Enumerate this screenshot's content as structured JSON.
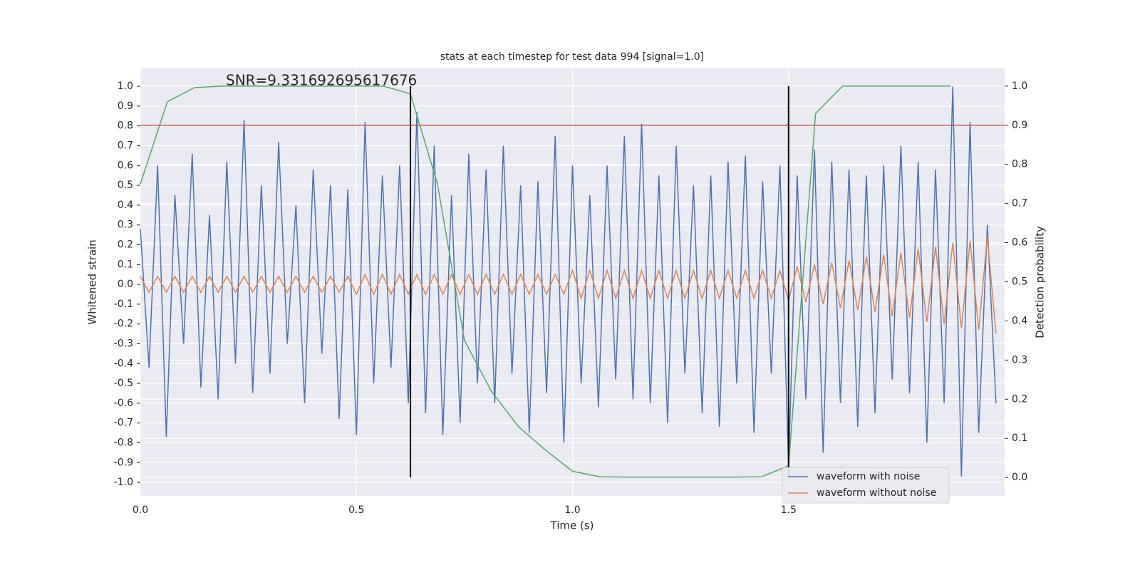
{
  "chart_data": {
    "type": "line",
    "title": "stats at each timestep for test data 994 [signal=1.0]",
    "x_label": "Time (s)",
    "y_label": "Whitened strain",
    "y2_label": "Detection probability",
    "annotation": "SNR=9.331692695617676",
    "xlim": [
      0,
      2.0
    ],
    "ylim": [
      -1.068,
      1.094
    ],
    "y2lim": [
      -0.047,
      1.047
    ],
    "xticks": [
      {
        "value": 0,
        "label": "0.0"
      },
      0.5,
      {
        "value": 1,
        "label": "1.0"
      },
      1.5
    ],
    "yticks": [
      {
        "value": 1,
        "label": "1.0"
      },
      0.9,
      0.8,
      0.7,
      0.6,
      0.5,
      0.4,
      0.3,
      0.2,
      0.1,
      {
        "value": 0,
        "label": "0.0"
      },
      -0.1,
      -0.2,
      -0.3,
      -0.4,
      -0.5,
      -0.6,
      -0.7,
      -0.8,
      -0.9,
      {
        "value": -1,
        "label": "-1.0"
      }
    ],
    "y2ticks": [
      {
        "value": 1,
        "label": "1.0"
      },
      0.9,
      0.8,
      0.7,
      0.6,
      0.5,
      0.4,
      0.3,
      0.2,
      0.1,
      {
        "value": 0,
        "label": "0.0"
      }
    ],
    "grid": true,
    "legend": "lower right",
    "x": [
      0,
      0.02,
      0.04,
      0.06,
      0.08,
      0.1,
      0.12,
      0.14,
      0.16,
      0.18,
      0.2,
      0.22,
      0.24,
      0.26,
      0.28,
      0.3,
      0.32,
      0.34,
      0.36,
      0.38,
      0.4,
      0.42,
      0.44,
      0.46,
      0.48,
      0.5,
      0.52,
      0.54,
      0.56,
      0.58,
      0.6,
      0.62,
      0.64,
      0.66,
      0.68,
      0.7,
      0.72,
      0.74,
      0.76,
      0.78,
      0.8,
      0.82,
      0.84,
      0.86,
      0.88,
      0.9,
      0.92,
      0.94,
      0.96,
      0.98,
      1,
      1.02,
      1.04,
      1.06,
      1.08,
      1.1,
      1.12,
      1.14,
      1.16,
      1.18,
      1.2,
      1.22,
      1.24,
      1.26,
      1.28,
      1.3,
      1.32,
      1.34,
      1.36,
      1.38,
      1.4,
      1.42,
      1.44,
      1.46,
      1.48,
      1.5,
      1.52,
      1.54,
      1.56,
      1.58,
      1.6,
      1.62,
      1.64,
      1.66,
      1.68,
      1.7,
      1.72,
      1.74,
      1.76,
      1.78,
      1.8,
      1.82,
      1.84,
      1.86,
      1.88,
      1.9,
      1.92,
      1.94,
      1.96,
      1.98
    ],
    "series": [
      {
        "name": "waveform with noise",
        "color": "#4c72b0",
        "values": [
          0.28,
          -0.42,
          0.6,
          -0.77,
          0.45,
          -0.3,
          0.66,
          -0.52,
          0.35,
          -0.58,
          0.62,
          -0.4,
          0.83,
          -0.55,
          0.5,
          -0.45,
          0.72,
          -0.3,
          0.4,
          -0.6,
          0.58,
          -0.35,
          0.5,
          -0.68,
          0.48,
          -0.76,
          0.82,
          -0.5,
          0.55,
          -0.42,
          0.6,
          -0.6,
          0.87,
          -0.65,
          0.7,
          -0.76,
          0.45,
          -0.7,
          0.66,
          -0.5,
          0.58,
          -0.6,
          0.7,
          -0.45,
          0.5,
          -0.75,
          0.52,
          -0.55,
          0.75,
          -0.8,
          0.6,
          -0.5,
          0.45,
          -0.62,
          0.6,
          -0.48,
          0.75,
          -0.58,
          0.81,
          -0.6,
          0.55,
          -0.7,
          0.7,
          -0.45,
          0.5,
          -0.65,
          0.55,
          -0.72,
          0.62,
          -0.5,
          0.65,
          -0.75,
          0.52,
          -0.45,
          0.6,
          -0.93,
          0.55,
          -0.58,
          0.68,
          -0.85,
          0.62,
          -0.6,
          0.58,
          -0.72,
          0.55,
          -0.65,
          0.6,
          -0.48,
          0.7,
          -0.55,
          0.62,
          -0.8,
          0.58,
          -0.6,
          1.0,
          -0.97,
          0.82,
          -0.75,
          0.3,
          -0.6
        ]
      },
      {
        "name": "waveform without noise",
        "color": "#dd8452",
        "values": [
          0.04,
          -0.04,
          0.04,
          -0.04,
          0.04,
          -0.04,
          0.04,
          -0.04,
          0.04,
          -0.04,
          0.04,
          -0.04,
          0.04,
          -0.04,
          0.04,
          -0.04,
          0.04,
          -0.04,
          0.04,
          -0.04,
          0.04,
          -0.04,
          0.04,
          -0.04,
          0.04,
          -0.05,
          0.05,
          -0.05,
          0.05,
          -0.05,
          0.05,
          -0.05,
          0.05,
          -0.05,
          0.05,
          -0.05,
          0.05,
          -0.05,
          0.05,
          -0.05,
          0.05,
          -0.05,
          0.05,
          -0.05,
          0.05,
          -0.05,
          0.05,
          -0.05,
          0.05,
          -0.05,
          0.07,
          -0.07,
          0.07,
          -0.07,
          0.07,
          -0.07,
          0.07,
          -0.07,
          0.07,
          -0.07,
          0.07,
          -0.07,
          0.07,
          -0.07,
          0.07,
          -0.07,
          0.07,
          -0.07,
          0.07,
          -0.07,
          0.07,
          -0.07,
          0.07,
          -0.07,
          0.07,
          -0.08,
          0.09,
          -0.09,
          0.1,
          -0.1,
          0.11,
          -0.12,
          0.12,
          -0.13,
          0.14,
          -0.14,
          0.15,
          -0.16,
          0.16,
          -0.17,
          0.18,
          -0.19,
          0.19,
          -0.2,
          0.21,
          -0.22,
          0.22,
          -0.23,
          0.24,
          -0.25
        ]
      }
    ],
    "detection": {
      "color": "#55a868",
      "axis": "y2",
      "x": [
        0,
        0.0625,
        0.125,
        0.1875,
        0.25,
        0.3125,
        0.375,
        0.4375,
        0.5,
        0.5625,
        0.625,
        0.6875,
        0.75,
        0.8125,
        0.875,
        0.9375,
        1.0,
        1.0625,
        1.125,
        1.1875,
        1.25,
        1.3125,
        1.375,
        1.4375,
        1.5,
        1.5625,
        1.625,
        1.6875,
        1.75,
        1.8125,
        1.875
      ],
      "values": [
        0.75,
        0.96,
        0.996,
        1.0,
        1.0,
        1.0,
        1.0,
        1.0,
        1.0,
        1.0,
        0.98,
        0.75,
        0.35,
        0.22,
        0.13,
        0.07,
        0.016,
        0.002,
        0.001,
        0.001,
        0.001,
        0.001,
        0.001,
        0.002,
        0.03,
        0.93,
        1.0,
        1.0,
        1.0,
        1.0,
        1.0
      ]
    },
    "threshold": {
      "value": 0.9,
      "color": "#c44e52",
      "axis": "y2"
    },
    "markers": {
      "x": [
        0.625,
        1.5
      ],
      "color": "#000000"
    }
  }
}
